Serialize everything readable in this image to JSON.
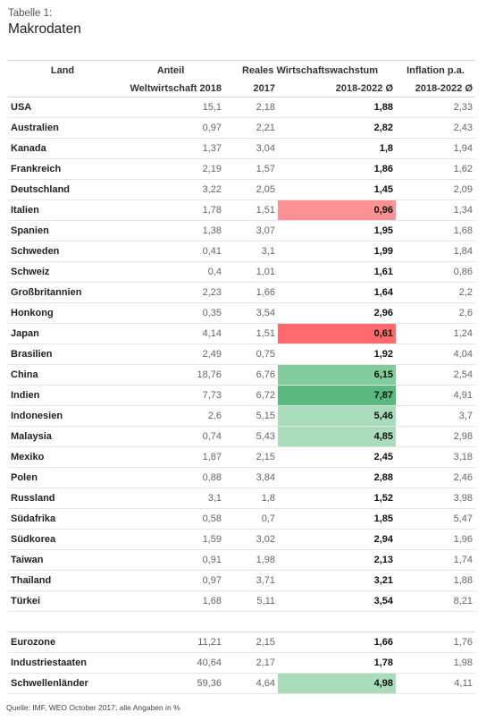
{
  "kicker": "Tabelle 1:",
  "title": "Makrodaten",
  "header": {
    "land": "Land",
    "anteil_top": "Anteil",
    "anteil_bottom": "Weltwirtschaft 2018",
    "wachstum_top": "Reales Wirtschaftswachstum",
    "wachstum_2017": "2017",
    "wachstum_avg": "2018-2022 Ø",
    "inflation_top": "Inflation p.a.",
    "inflation_avg": "2018-2022 Ø"
  },
  "colors": {
    "red_strong": "#fe6a6e",
    "red_light": "#fc9193",
    "green_strong": "#5ab97f",
    "green_mid": "#82cc9c",
    "green_light": "#a9dcbb"
  },
  "rows": [
    {
      "land": "USA",
      "anteil": "15,1",
      "w2017": "2,18",
      "wavg": "1,88",
      "infl": "2,33",
      "hl": ""
    },
    {
      "land": "Australien",
      "anteil": "0,97",
      "w2017": "2,21",
      "wavg": "2,82",
      "infl": "2,43",
      "hl": ""
    },
    {
      "land": "Kanada",
      "anteil": "1,37",
      "w2017": "3,04",
      "wavg": "1,8",
      "infl": "1,94",
      "hl": ""
    },
    {
      "land": "Frankreich",
      "anteil": "2,19",
      "w2017": "1,57",
      "wavg": "1,86",
      "infl": "1,62",
      "hl": ""
    },
    {
      "land": "Deutschland",
      "anteil": "3,22",
      "w2017": "2,05",
      "wavg": "1,45",
      "infl": "2,09",
      "hl": ""
    },
    {
      "land": "Italien",
      "anteil": "1,78",
      "w2017": "1,51",
      "wavg": "0,96",
      "infl": "1,34",
      "hl": "red_light"
    },
    {
      "land": "Spanien",
      "anteil": "1,38",
      "w2017": "3,07",
      "wavg": "1,95",
      "infl": "1,68",
      "hl": ""
    },
    {
      "land": "Schweden",
      "anteil": "0,41",
      "w2017": "3,1",
      "wavg": "1,99",
      "infl": "1,84",
      "hl": ""
    },
    {
      "land": "Schweiz",
      "anteil": "0,4",
      "w2017": "1,01",
      "wavg": "1,61",
      "infl": "0,86",
      "hl": ""
    },
    {
      "land": "Großbritannien",
      "anteil": "2,23",
      "w2017": "1,66",
      "wavg": "1,64",
      "infl": "2,2",
      "hl": ""
    },
    {
      "land": "Honkong",
      "anteil": "0,35",
      "w2017": "3,54",
      "wavg": "2,96",
      "infl": "2,6",
      "hl": ""
    },
    {
      "land": "Japan",
      "anteil": "4,14",
      "w2017": "1,51",
      "wavg": "0,61",
      "infl": "1,24",
      "hl": "red_strong"
    },
    {
      "land": "Brasilien",
      "anteil": "2,49",
      "w2017": "0,75",
      "wavg": "1,92",
      "infl": "4,04",
      "hl": ""
    },
    {
      "land": "China",
      "anteil": "18,76",
      "w2017": "6,76",
      "wavg": "6,15",
      "infl": "2,54",
      "hl": "green_mid"
    },
    {
      "land": "Indien",
      "anteil": "7,73",
      "w2017": "6,72",
      "wavg": "7,87",
      "infl": "4,91",
      "hl": "green_strong"
    },
    {
      "land": "Indonesien",
      "anteil": "2,6",
      "w2017": "5,15",
      "wavg": "5,46",
      "infl": "3,7",
      "hl": "green_light"
    },
    {
      "land": "Malaysia",
      "anteil": "0,74",
      "w2017": "5,43",
      "wavg": "4,85",
      "infl": "2,98",
      "hl": "green_light"
    },
    {
      "land": "Mexiko",
      "anteil": "1,87",
      "w2017": "2,15",
      "wavg": "2,45",
      "infl": "3,18",
      "hl": ""
    },
    {
      "land": "Polen",
      "anteil": "0,88",
      "w2017": "3,84",
      "wavg": "2,88",
      "infl": "2,46",
      "hl": ""
    },
    {
      "land": "Russland",
      "anteil": "3,1",
      "w2017": "1,8",
      "wavg": "1,52",
      "infl": "3,98",
      "hl": ""
    },
    {
      "land": "Südafrika",
      "anteil": "0,58",
      "w2017": "0,7",
      "wavg": "1,85",
      "infl": "5,47",
      "hl": ""
    },
    {
      "land": "Südkorea",
      "anteil": "1,59",
      "w2017": "3,02",
      "wavg": "2,94",
      "infl": "1,96",
      "hl": ""
    },
    {
      "land": "Taiwan",
      "anteil": "0,91",
      "w2017": "1,98",
      "wavg": "2,13",
      "infl": "1,74",
      "hl": ""
    },
    {
      "land": "Thailand",
      "anteil": "0,97",
      "w2017": "3,71",
      "wavg": "3,21",
      "infl": "1,88",
      "hl": ""
    },
    {
      "land": "Türkei",
      "anteil": "1,68",
      "w2017": "5,11",
      "wavg": "3,54",
      "infl": "8,21",
      "hl": ""
    }
  ],
  "aggregates": [
    {
      "land": "Eurozone",
      "anteil": "11,21",
      "w2017": "2,15",
      "wavg": "1,66",
      "infl": "1,76",
      "hl": ""
    },
    {
      "land": "Industriestaaten",
      "anteil": "40,64",
      "w2017": "2,17",
      "wavg": "1,78",
      "infl": "1,98",
      "hl": ""
    },
    {
      "land": "Schwellenländer",
      "anteil": "59,36",
      "w2017": "4,64",
      "wavg": "4,98",
      "infl": "4,11",
      "hl": "green_light"
    }
  ],
  "source": "Quelle: IMF, WEO October 2017; alle Angaben in %"
}
